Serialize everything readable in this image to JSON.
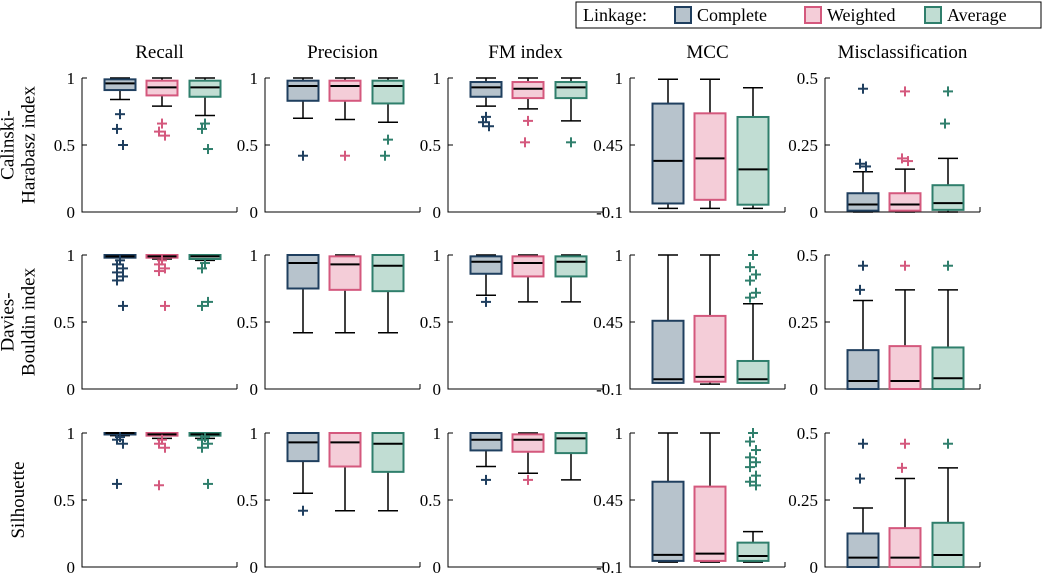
{
  "legend": {
    "title": "Linkage:",
    "entries": [
      {
        "label": "Complete",
        "edge": "#1f3f5f",
        "fill": "#b7c3cc"
      },
      {
        "label": "Weighted",
        "edge": "#d4587d",
        "fill": "#f4cdd8"
      },
      {
        "label": "Average",
        "edge": "#2f7f6c",
        "fill": "#c1ddd3"
      }
    ]
  },
  "chart_data": {
    "type": "box",
    "columns": [
      "Recall",
      "Precision",
      "FM index",
      "MCC",
      "Misclassification"
    ],
    "rows": [
      [
        "Calinski-",
        "Harabasz index"
      ],
      [
        "Davies-",
        "Bouldin index"
      ],
      [
        "Silhouette"
      ]
    ],
    "series": [
      "Complete",
      "Weighted",
      "Average"
    ],
    "axes": [
      {
        "ylim": [
          0,
          1
        ],
        "ticks": [
          "0",
          "0.5",
          "1"
        ],
        "tick_values": [
          0,
          0.5,
          1
        ]
      },
      {
        "ylim": [
          0,
          1
        ],
        "ticks": [
          "0",
          "0.5",
          "1"
        ],
        "tick_values": [
          0,
          0.5,
          1
        ]
      },
      {
        "ylim": [
          0,
          1
        ],
        "ticks": [
          "0",
          "0.5",
          "1"
        ],
        "tick_values": [
          0,
          0.5,
          1
        ]
      },
      {
        "ylim": [
          -0.1,
          1
        ],
        "ticks": [
          "-0.1",
          "0.45",
          "1"
        ],
        "tick_values": [
          -0.1,
          0.45,
          1
        ]
      },
      {
        "ylim": [
          0,
          0.5
        ],
        "ticks": [
          "0",
          "0.25",
          "0.5"
        ],
        "tick_values": [
          0,
          0.25,
          0.5
        ]
      }
    ],
    "boxes": [
      [
        [
          {
            "wl": 0.84,
            "q1": 0.91,
            "med": 0.96,
            "q3": 0.99,
            "wh": 1.0,
            "out": [
              0.73,
              0.62,
              0.5
            ]
          },
          {
            "wl": 0.79,
            "q1": 0.87,
            "med": 0.93,
            "q3": 0.98,
            "wh": 1.0,
            "out": [
              0.66,
              0.6,
              0.57
            ]
          },
          {
            "wl": 0.72,
            "q1": 0.86,
            "med": 0.93,
            "q3": 0.98,
            "wh": 1.0,
            "out": [
              0.66,
              0.62,
              0.47
            ]
          }
        ],
        [
          {
            "wl": 0.7,
            "q1": 0.83,
            "med": 0.94,
            "q3": 0.98,
            "wh": 1.0,
            "out": [
              0.42
            ]
          },
          {
            "wl": 0.69,
            "q1": 0.83,
            "med": 0.94,
            "q3": 0.98,
            "wh": 1.0,
            "out": [
              0.42
            ]
          },
          {
            "wl": 0.67,
            "q1": 0.81,
            "med": 0.94,
            "q3": 0.98,
            "wh": 1.0,
            "out": [
              0.54,
              0.42
            ]
          }
        ],
        [
          {
            "wl": 0.79,
            "q1": 0.86,
            "med": 0.93,
            "q3": 0.97,
            "wh": 1.0,
            "out": [
              0.71,
              0.67,
              0.64
            ]
          },
          {
            "wl": 0.77,
            "q1": 0.85,
            "med": 0.92,
            "q3": 0.97,
            "wh": 1.0,
            "out": [
              0.68,
              0.52
            ]
          },
          {
            "wl": 0.68,
            "q1": 0.85,
            "med": 0.93,
            "q3": 0.97,
            "wh": 1.0,
            "out": [
              0.52
            ]
          }
        ],
        [
          {
            "wl": -0.07,
            "q1": -0.03,
            "med": 0.32,
            "q3": 0.79,
            "wh": 0.99,
            "out": []
          },
          {
            "wl": -0.07,
            "q1": 0.0,
            "med": 0.34,
            "q3": 0.71,
            "wh": 0.99,
            "out": []
          },
          {
            "wl": -0.07,
            "q1": -0.04,
            "med": 0.25,
            "q3": 0.68,
            "wh": 0.92,
            "out": []
          }
        ],
        [
          {
            "wl": 0.0,
            "q1": 0.005,
            "med": 0.028,
            "q3": 0.07,
            "wh": 0.15,
            "out": [
              0.46,
              0.18,
              0.17
            ]
          },
          {
            "wl": 0.0,
            "q1": 0.005,
            "med": 0.028,
            "q3": 0.07,
            "wh": 0.16,
            "out": [
              0.45,
              0.2,
              0.19
            ]
          },
          {
            "wl": 0.0,
            "q1": 0.008,
            "med": 0.033,
            "q3": 0.1,
            "wh": 0.2,
            "out": [
              0.45,
              0.33
            ]
          }
        ]
      ],
      [
        [
          {
            "wl": 0.98,
            "q1": 0.98,
            "med": 0.99,
            "q3": 1.0,
            "wh": 1.0,
            "out": [
              0.96,
              0.93,
              0.9,
              0.87,
              0.84,
              0.81,
              0.62
            ]
          },
          {
            "wl": 0.97,
            "q1": 0.98,
            "med": 0.99,
            "q3": 1.0,
            "wh": 1.0,
            "out": [
              0.96,
              0.93,
              0.9,
              0.88,
              0.62
            ]
          },
          {
            "wl": 0.96,
            "q1": 0.97,
            "med": 0.99,
            "q3": 1.0,
            "wh": 1.0,
            "out": [
              0.94,
              0.9,
              0.65,
              0.62
            ]
          }
        ],
        [
          {
            "wl": 0.42,
            "q1": 0.75,
            "med": 0.94,
            "q3": 1.0,
            "wh": 1.0,
            "out": []
          },
          {
            "wl": 0.42,
            "q1": 0.74,
            "med": 0.93,
            "q3": 0.99,
            "wh": 1.0,
            "out": []
          },
          {
            "wl": 0.42,
            "q1": 0.73,
            "med": 0.92,
            "q3": 1.0,
            "wh": 1.0,
            "out": []
          }
        ],
        [
          {
            "wl": 0.7,
            "q1": 0.86,
            "med": 0.95,
            "q3": 0.99,
            "wh": 1.0,
            "out": [
              0.65
            ]
          },
          {
            "wl": 0.65,
            "q1": 0.84,
            "med": 0.94,
            "q3": 0.99,
            "wh": 1.0,
            "out": []
          },
          {
            "wl": 0.65,
            "q1": 0.84,
            "med": 0.95,
            "q3": 0.99,
            "wh": 1.0,
            "out": []
          }
        ],
        [
          {
            "wl": -0.05,
            "q1": -0.05,
            "med": -0.02,
            "q3": 0.46,
            "wh": 1.0,
            "out": []
          },
          {
            "wl": -0.06,
            "q1": -0.04,
            "med": 0.0,
            "q3": 0.5,
            "wh": 1.0,
            "out": []
          },
          {
            "wl": -0.05,
            "q1": -0.05,
            "med": -0.02,
            "q3": 0.13,
            "wh": 0.6,
            "out": [
              1.0,
              0.9,
              0.84,
              0.79,
              0.69,
              0.65
            ]
          }
        ],
        [
          {
            "wl": 0.0,
            "q1": 0.0,
            "med": 0.03,
            "q3": 0.145,
            "wh": 0.33,
            "out": [
              0.46,
              0.37
            ]
          },
          {
            "wl": 0.0,
            "q1": 0.0,
            "med": 0.03,
            "q3": 0.16,
            "wh": 0.37,
            "out": [
              0.46
            ]
          },
          {
            "wl": 0.0,
            "q1": 0.0,
            "med": 0.04,
            "q3": 0.155,
            "wh": 0.37,
            "out": [
              0.46
            ]
          }
        ]
      ],
      [
        [
          {
            "wl": 0.98,
            "q1": 0.99,
            "med": 1.0,
            "q3": 1.0,
            "wh": 1.0,
            "out": [
              0.97,
              0.95,
              0.92,
              0.62
            ]
          },
          {
            "wl": 0.96,
            "q1": 0.98,
            "med": 0.99,
            "q3": 1.0,
            "wh": 1.0,
            "out": [
              0.95,
              0.92,
              0.89,
              0.61
            ]
          },
          {
            "wl": 0.96,
            "q1": 0.98,
            "med": 0.99,
            "q3": 1.0,
            "wh": 1.0,
            "out": [
              0.97,
              0.95,
              0.92,
              0.89,
              0.62
            ]
          }
        ],
        [
          {
            "wl": 0.55,
            "q1": 0.79,
            "med": 0.93,
            "q3": 1.0,
            "wh": 1.0,
            "out": [
              0.42
            ]
          },
          {
            "wl": 0.42,
            "q1": 0.75,
            "med": 0.93,
            "q3": 1.0,
            "wh": 1.0,
            "out": []
          },
          {
            "wl": 0.42,
            "q1": 0.71,
            "med": 0.92,
            "q3": 1.0,
            "wh": 1.0,
            "out": []
          }
        ],
        [
          {
            "wl": 0.75,
            "q1": 0.87,
            "med": 0.95,
            "q3": 1.0,
            "wh": 1.0,
            "out": [
              0.65
            ]
          },
          {
            "wl": 0.7,
            "q1": 0.86,
            "med": 0.95,
            "q3": 0.99,
            "wh": 1.0,
            "out": [
              0.65
            ]
          },
          {
            "wl": 0.65,
            "q1": 0.85,
            "med": 0.96,
            "q3": 1.0,
            "wh": 1.0,
            "out": []
          }
        ],
        [
          {
            "wl": -0.06,
            "q1": -0.05,
            "med": 0.0,
            "q3": 0.6,
            "wh": 1.0,
            "out": []
          },
          {
            "wl": -0.06,
            "q1": -0.05,
            "med": 0.01,
            "q3": 0.56,
            "wh": 1.0,
            "out": []
          },
          {
            "wl": -0.06,
            "q1": -0.05,
            "med": -0.01,
            "q3": 0.1,
            "wh": 0.19,
            "out": [
              1.0,
              0.93,
              0.86,
              0.8,
              0.76,
              0.72,
              0.65,
              0.6,
              0.57
            ]
          }
        ],
        [
          {
            "wl": 0.0,
            "q1": 0.0,
            "med": 0.035,
            "q3": 0.125,
            "wh": 0.22,
            "out": [
              0.46,
              0.33
            ]
          },
          {
            "wl": 0.0,
            "q1": 0.0,
            "med": 0.035,
            "q3": 0.145,
            "wh": 0.33,
            "out": [
              0.46,
              0.37
            ]
          },
          {
            "wl": 0.0,
            "q1": 0.0,
            "med": 0.045,
            "q3": 0.165,
            "wh": 0.37,
            "out": [
              0.46
            ]
          }
        ]
      ]
    ]
  }
}
